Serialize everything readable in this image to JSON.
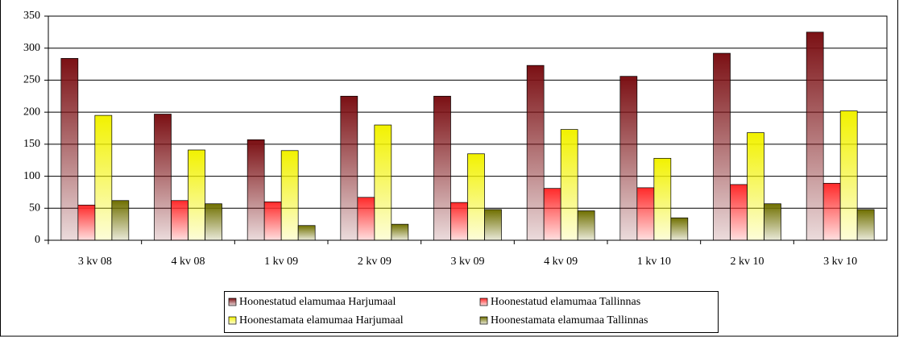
{
  "chart_data": {
    "type": "bar",
    "categories": [
      "3 kv 08",
      "4 kv 08",
      "1 kv 09",
      "2 kv 09",
      "3 kv 09",
      "4 kv 09",
      "1 kv 10",
      "2 kv 10",
      "3 kv 10"
    ],
    "series": [
      {
        "name": "Hoonestatud elamumaa Harjumaal",
        "color": "#7b1014",
        "values": [
          284,
          197,
          157,
          225,
          225,
          273,
          256,
          292,
          325
        ]
      },
      {
        "name": "Hoonestatud elamumaa Tallinnas",
        "color": "#ff2a2a",
        "values": [
          55,
          62,
          60,
          67,
          59,
          81,
          82,
          87,
          89
        ]
      },
      {
        "name": "Hoonestamata elamumaa Harjumaal",
        "color": "#f2f200",
        "values": [
          195,
          141,
          140,
          180,
          135,
          173,
          128,
          168,
          202
        ]
      },
      {
        "name": "Hoonestamata elamumaa Tallinnas",
        "color": "#707000",
        "values": [
          62,
          57,
          23,
          25,
          48,
          46,
          35,
          57,
          48
        ]
      }
    ],
    "ylim": [
      0,
      350
    ],
    "yticks": [
      0,
      50,
      100,
      150,
      200,
      250,
      300,
      350
    ],
    "grid": true
  }
}
